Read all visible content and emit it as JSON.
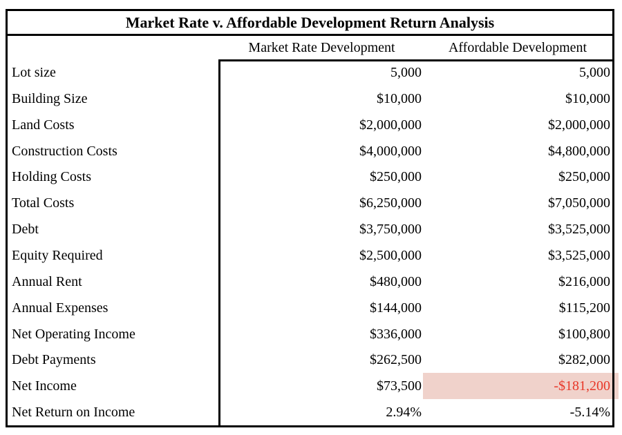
{
  "title": "Market Rate v. Affordable Development Return Analysis",
  "table": {
    "columns": [
      "Market Rate Development",
      "Affordable Development"
    ],
    "rows": [
      {
        "label": "Lot size",
        "market_rate": "5,000",
        "affordable": "5,000"
      },
      {
        "label": "Building Size",
        "market_rate": "$10,000",
        "affordable": "$10,000"
      },
      {
        "label": "Land Costs",
        "market_rate": "$2,000,000",
        "affordable": "$2,000,000"
      },
      {
        "label": "Construction Costs",
        "market_rate": "$4,000,000",
        "affordable": "$4,800,000"
      },
      {
        "label": "Holding Costs",
        "market_rate": "$250,000",
        "affordable": "$250,000"
      },
      {
        "label": "Total Costs",
        "market_rate": "$6,250,000",
        "affordable": "$7,050,000"
      },
      {
        "label": "Debt",
        "market_rate": "$3,750,000",
        "affordable": "$3,525,000"
      },
      {
        "label": "Equity Required",
        "market_rate": "$2,500,000",
        "affordable": "$3,525,000"
      },
      {
        "label": "Annual Rent",
        "market_rate": "$480,000",
        "affordable": "$216,000"
      },
      {
        "label": "Annual Expenses",
        "market_rate": "$144,000",
        "affordable": "$115,200"
      },
      {
        "label": "Net Operating Income",
        "market_rate": "$336,000",
        "affordable": "$100,800"
      },
      {
        "label": "Debt Payments",
        "market_rate": "$262,500",
        "affordable": "$282,000"
      },
      {
        "label": "Net Income",
        "market_rate": "$73,500",
        "affordable": "-$181,200",
        "affordable_highlighted": true
      },
      {
        "label": "Net Return on Income",
        "market_rate": "2.94%",
        "affordable": "-5.14%"
      }
    ]
  },
  "colors": {
    "negative_highlight_background": "#f0d2cb",
    "negative_value_text": "#e83728",
    "table_border": "#000000",
    "page_background": "#ffffff"
  }
}
